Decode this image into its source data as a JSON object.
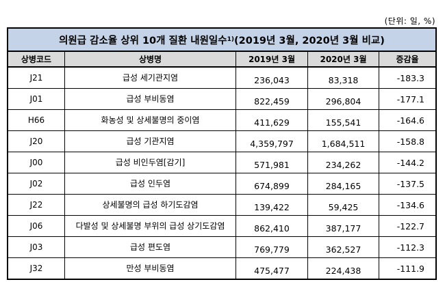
{
  "unit_note": "(단위: 일, %)",
  "table": {
    "title_main": "의원급 감소율 상위 10개 질환 내원일수",
    "title_sup": "1)",
    "title_period": " (2019년 3월, 2020년 3월 비교)",
    "headers": [
      "상병코드",
      "상병명",
      "2019년 3월",
      "2020년 3월",
      "증감율"
    ],
    "rows": [
      {
        "code": "J21",
        "name": "급성  세기관지염",
        "v2019": "236,043",
        "v2020": "83,318",
        "rate": "-183.3"
      },
      {
        "code": "J01",
        "name": "급성  부비동염",
        "v2019": "822,459",
        "v2020": "296,804",
        "rate": "-177.1"
      },
      {
        "code": "H66",
        "name": "화농성  및  상세불명의  중이염",
        "v2019": "411,629",
        "v2020": "155,541",
        "rate": "-164.6"
      },
      {
        "code": "J20",
        "name": "급성  기관지염",
        "v2019": "4,359,797",
        "v2020": "1,684,511",
        "rate": "-158.8"
      },
      {
        "code": "J00",
        "name": "급성  비인두염[감기]",
        "v2019": "571,981",
        "v2020": "234,262",
        "rate": "-144.2"
      },
      {
        "code": "J02",
        "name": "급성  인두염",
        "v2019": "674,899",
        "v2020": "284,165",
        "rate": "-137.5"
      },
      {
        "code": "J22",
        "name": "상세불명의  급성  하기도감염",
        "v2019": "139,422",
        "v2020": "59,425",
        "rate": "-134.6"
      },
      {
        "code": "J06",
        "name": "다발성  및  상세불명  부위의  급성  상기도감염",
        "v2019": "862,410",
        "v2020": "387,177",
        "rate": "-122.7"
      },
      {
        "code": "J03",
        "name": "급성  편도염",
        "v2019": "769,779",
        "v2020": "362,527",
        "rate": "-112.3"
      },
      {
        "code": "J32",
        "name": "만성  부비동염",
        "v2019": "475,477",
        "v2020": "224,438",
        "rate": "-111.9"
      }
    ]
  }
}
